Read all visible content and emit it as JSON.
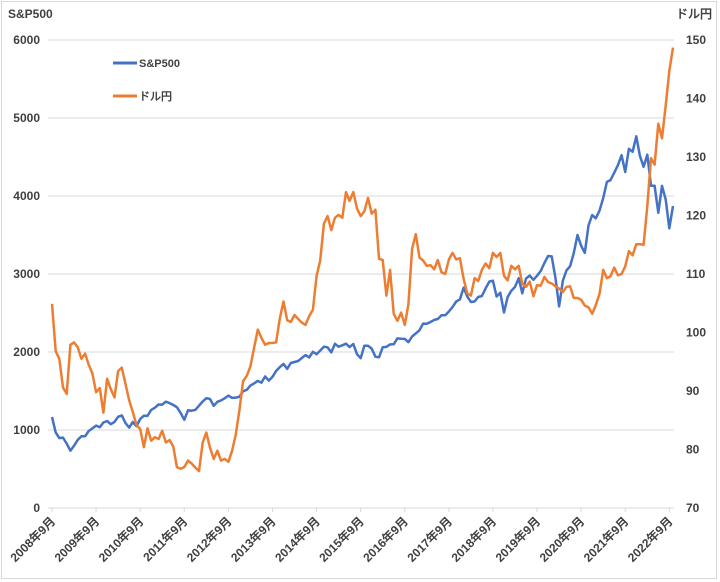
{
  "chart_data": {
    "type": "line",
    "y_left_label": "S&P500",
    "y_right_label": "ドル円",
    "y_left_lim": [
      0,
      6000
    ],
    "y_left_ticks": [
      "0",
      "1000",
      "2000",
      "3000",
      "4000",
      "5000",
      "6000"
    ],
    "y_right_lim": [
      70,
      150
    ],
    "y_right_ticks": [
      "70",
      "80",
      "90",
      "100",
      "110",
      "120",
      "130",
      "140",
      "150"
    ],
    "x_tick_labels": [
      "2008年9月",
      "2009年9月",
      "2010年9月",
      "2011年9月",
      "2012年9月",
      "2013年9月",
      "2014年9月",
      "2015年9月",
      "2016年9月",
      "2017年9月",
      "2018年9月",
      "2019年9月",
      "2020年9月",
      "2021年9月",
      "2022年9月"
    ],
    "grid": "horizontal",
    "legend_position": "top-left",
    "x": [
      "2008-09",
      "2008-10",
      "2008-11",
      "2008-12",
      "2009-01",
      "2009-02",
      "2009-03",
      "2009-04",
      "2009-05",
      "2009-06",
      "2009-07",
      "2009-08",
      "2009-09",
      "2009-10",
      "2009-11",
      "2009-12",
      "2010-01",
      "2010-02",
      "2010-03",
      "2010-04",
      "2010-05",
      "2010-06",
      "2010-07",
      "2010-08",
      "2010-09",
      "2010-10",
      "2010-11",
      "2010-12",
      "2011-01",
      "2011-02",
      "2011-03",
      "2011-04",
      "2011-05",
      "2011-06",
      "2011-07",
      "2011-08",
      "2011-09",
      "2011-10",
      "2011-11",
      "2011-12",
      "2012-01",
      "2012-02",
      "2012-03",
      "2012-04",
      "2012-05",
      "2012-06",
      "2012-07",
      "2012-08",
      "2012-09",
      "2012-10",
      "2012-11",
      "2012-12",
      "2013-01",
      "2013-02",
      "2013-03",
      "2013-04",
      "2013-05",
      "2013-06",
      "2013-07",
      "2013-08",
      "2013-09",
      "2013-10",
      "2013-11",
      "2013-12",
      "2014-01",
      "2014-02",
      "2014-03",
      "2014-04",
      "2014-05",
      "2014-06",
      "2014-07",
      "2014-08",
      "2014-09",
      "2014-10",
      "2014-11",
      "2014-12",
      "2015-01",
      "2015-02",
      "2015-03",
      "2015-04",
      "2015-05",
      "2015-06",
      "2015-07",
      "2015-08",
      "2015-09",
      "2015-10",
      "2015-11",
      "2015-12",
      "2016-01",
      "2016-02",
      "2016-03",
      "2016-04",
      "2016-05",
      "2016-06",
      "2016-07",
      "2016-08",
      "2016-09",
      "2016-10",
      "2016-11",
      "2016-12",
      "2017-01",
      "2017-02",
      "2017-03",
      "2017-04",
      "2017-05",
      "2017-06",
      "2017-07",
      "2017-08",
      "2017-09",
      "2017-10",
      "2017-11",
      "2017-12",
      "2018-01",
      "2018-02",
      "2018-03",
      "2018-04",
      "2018-05",
      "2018-06",
      "2018-07",
      "2018-08",
      "2018-09",
      "2018-10",
      "2018-11",
      "2018-12",
      "2019-01",
      "2019-02",
      "2019-03",
      "2019-04",
      "2019-05",
      "2019-06",
      "2019-07",
      "2019-08",
      "2019-09",
      "2019-10",
      "2019-11",
      "2019-12",
      "2020-01",
      "2020-02",
      "2020-03",
      "2020-04",
      "2020-05",
      "2020-06",
      "2020-07",
      "2020-08",
      "2020-09",
      "2020-10",
      "2020-11",
      "2020-12",
      "2021-01",
      "2021-02",
      "2021-03",
      "2021-04",
      "2021-05",
      "2021-06",
      "2021-07",
      "2021-08",
      "2021-09",
      "2021-10",
      "2021-11",
      "2021-12",
      "2022-01",
      "2022-02",
      "2022-03",
      "2022-04",
      "2022-05",
      "2022-06",
      "2022-07",
      "2022-08",
      "2022-09",
      "2022-10"
    ],
    "series": [
      {
        "name": "S&P500",
        "axis": "left",
        "color": "#4472c4",
        "values": [
          1166,
          969,
          896,
          903,
          826,
          735,
          798,
          873,
          919,
          919,
          987,
          1021,
          1057,
          1036,
          1096,
          1115,
          1074,
          1104,
          1169,
          1187,
          1089,
          1031,
          1102,
          1049,
          1141,
          1183,
          1181,
          1258,
          1286,
          1327,
          1326,
          1364,
          1345,
          1321,
          1292,
          1219,
          1131,
          1253,
          1247,
          1258,
          1312,
          1366,
          1408,
          1398,
          1310,
          1362,
          1379,
          1407,
          1441,
          1412,
          1416,
          1426,
          1498,
          1515,
          1569,
          1598,
          1631,
          1606,
          1686,
          1633,
          1682,
          1757,
          1806,
          1848,
          1783,
          1859,
          1872,
          1884,
          1924,
          1960,
          1931,
          2003,
          1972,
          2018,
          2068,
          2059,
          1995,
          2105,
          2068,
          2086,
          2107,
          2063,
          2104,
          1972,
          1920,
          2079,
          2080,
          2044,
          1940,
          1932,
          2060,
          2065,
          2097,
          2099,
          2174,
          2171,
          2168,
          2126,
          2199,
          2239,
          2279,
          2364,
          2363,
          2384,
          2412,
          2423,
          2470,
          2472,
          2519,
          2575,
          2648,
          2674,
          2824,
          2714,
          2641,
          2648,
          2705,
          2718,
          2816,
          2902,
          2914,
          2712,
          2760,
          2507,
          2704,
          2784,
          2834,
          2946,
          2752,
          2942,
          2980,
          2926,
          2977,
          3038,
          3141,
          3231,
          3226,
          2954,
          2585,
          2912,
          3044,
          3100,
          3271,
          3500,
          3363,
          3270,
          3622,
          3756,
          3714,
          3811,
          3973,
          4181,
          4204,
          4298,
          4395,
          4523,
          4308,
          4605,
          4567,
          4766,
          4516,
          4374,
          4530,
          4132,
          4132,
          3785,
          4130,
          3955,
          3586,
          3872
        ]
      },
      {
        "name": "ドル円",
        "axis": "right",
        "color": "#ed7d31",
        "values": [
          104.9,
          96.8,
          95.5,
          90.6,
          89.5,
          97.9,
          98.3,
          97.5,
          95.5,
          96.4,
          94.5,
          93.0,
          89.8,
          90.5,
          86.3,
          92.1,
          90.3,
          88.9,
          93.4,
          94.0,
          91.2,
          88.4,
          86.4,
          84.2,
          83.5,
          80.4,
          83.6,
          81.5,
          82.1,
          81.8,
          83.2,
          81.2,
          81.6,
          80.5,
          77.0,
          76.7,
          77.0,
          78.1,
          77.6,
          76.9,
          76.3,
          81.2,
          82.9,
          80.3,
          78.4,
          79.8,
          78.1,
          78.4,
          77.9,
          79.8,
          82.5,
          86.7,
          91.7,
          92.6,
          94.2,
          97.4,
          100.5,
          99.1,
          97.9,
          98.2,
          98.2,
          98.3,
          102.4,
          105.3,
          102.1,
          101.8,
          103.0,
          102.3,
          101.7,
          101.3,
          102.8,
          103.9,
          109.7,
          112.3,
          118.6,
          119.9,
          117.5,
          119.6,
          120.1,
          119.6,
          124.0,
          122.5,
          124.0,
          121.2,
          119.9,
          120.7,
          123.0,
          120.3,
          121.0,
          112.6,
          112.4,
          106.3,
          110.7,
          103.2,
          102.0,
          103.4,
          101.3,
          104.8,
          114.3,
          116.8,
          112.8,
          112.3,
          111.4,
          111.5,
          110.8,
          112.4,
          110.3,
          110.0,
          112.5,
          113.6,
          112.5,
          112.7,
          109.2,
          106.7,
          106.3,
          109.3,
          108.8,
          110.7,
          111.8,
          111.0,
          113.6,
          112.9,
          113.6,
          109.7,
          108.9,
          111.4,
          110.8,
          111.4,
          108.3,
          107.8,
          108.7,
          106.2,
          108.1,
          108.0,
          109.5,
          108.6,
          108.4,
          107.9,
          107.5,
          106.9,
          107.8,
          107.9,
          105.9,
          105.9,
          105.6,
          104.6,
          104.3,
          103.2,
          104.7,
          106.6,
          110.7,
          109.3,
          109.6,
          111.1,
          109.8,
          110.0,
          111.3,
          113.9,
          113.2,
          115.1,
          115.1,
          115.0,
          121.6,
          129.8,
          128.7,
          135.7,
          133.2,
          138.8,
          144.7,
          148.7
        ]
      }
    ]
  }
}
